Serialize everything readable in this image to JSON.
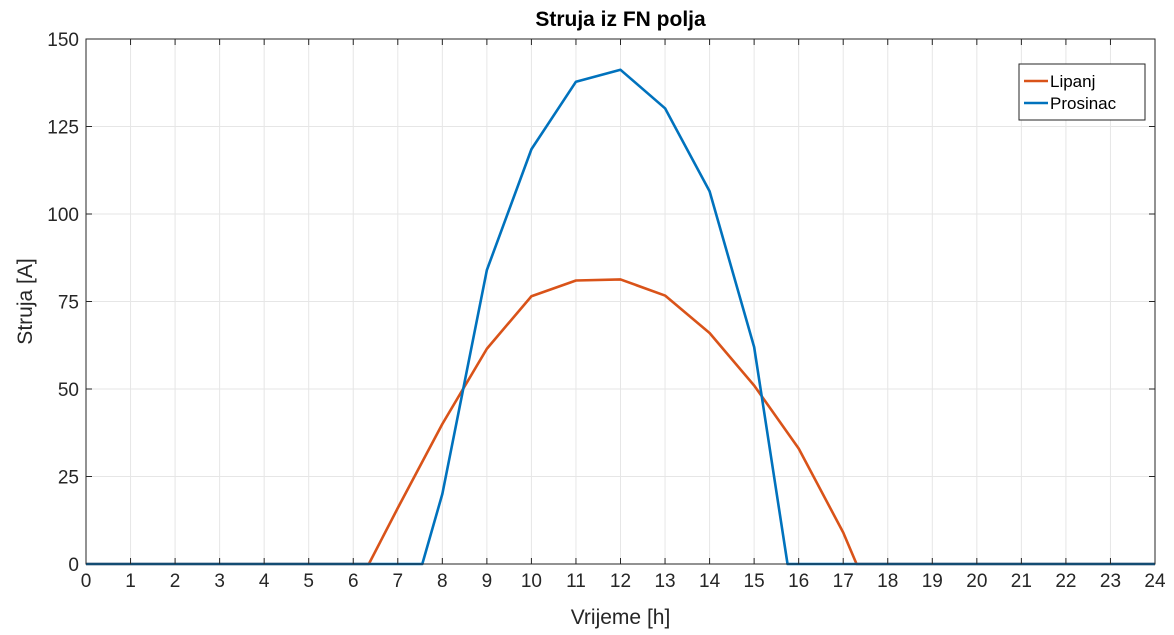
{
  "chart_data": {
    "type": "line",
    "title": "Struja iz FN polja",
    "xlabel": "Vrijeme [h]",
    "ylabel": "Struja [A]",
    "xlim": [
      0,
      24
    ],
    "ylim": [
      0,
      150
    ],
    "xticks": [
      0,
      1,
      2,
      3,
      4,
      5,
      6,
      7,
      8,
      9,
      10,
      11,
      12,
      13,
      14,
      15,
      16,
      17,
      18,
      19,
      20,
      21,
      22,
      23,
      24
    ],
    "yticks": [
      0,
      25,
      50,
      75,
      100,
      125,
      150
    ],
    "grid": true,
    "legend_position": "top-right",
    "series": [
      {
        "name": "Lipanj",
        "color": "#D95319",
        "points": [
          [
            0,
            0
          ],
          [
            1,
            0
          ],
          [
            2,
            0
          ],
          [
            3,
            0
          ],
          [
            4,
            0
          ],
          [
            5,
            0
          ],
          [
            6,
            0
          ],
          [
            6.35,
            0
          ],
          [
            7,
            16
          ],
          [
            8,
            40
          ],
          [
            9,
            61.5
          ],
          [
            10,
            76.5
          ],
          [
            11,
            81
          ],
          [
            12,
            81.3
          ],
          [
            13,
            76.7
          ],
          [
            14,
            66
          ],
          [
            15,
            51
          ],
          [
            16,
            33
          ],
          [
            17,
            9
          ],
          [
            17.3,
            0
          ],
          [
            18,
            0
          ],
          [
            19,
            0
          ],
          [
            20,
            0
          ],
          [
            21,
            0
          ],
          [
            22,
            0
          ],
          [
            23,
            0
          ],
          [
            24,
            0
          ]
        ]
      },
      {
        "name": "Prosinac",
        "color": "#0072BD",
        "points": [
          [
            0,
            0
          ],
          [
            1,
            0
          ],
          [
            2,
            0
          ],
          [
            3,
            0
          ],
          [
            4,
            0
          ],
          [
            5,
            0
          ],
          [
            6,
            0
          ],
          [
            7,
            0
          ],
          [
            7.55,
            0
          ],
          [
            8,
            20
          ],
          [
            9,
            84
          ],
          [
            10,
            118.5
          ],
          [
            11,
            137.8
          ],
          [
            12,
            141.2
          ],
          [
            13,
            130.2
          ],
          [
            14,
            106.5
          ],
          [
            15,
            62
          ],
          [
            15.75,
            0
          ],
          [
            16,
            0
          ],
          [
            17,
            0
          ],
          [
            18,
            0
          ],
          [
            19,
            0
          ],
          [
            20,
            0
          ],
          [
            21,
            0
          ],
          [
            22,
            0
          ],
          [
            23,
            0
          ],
          [
            24,
            0
          ]
        ]
      }
    ]
  }
}
